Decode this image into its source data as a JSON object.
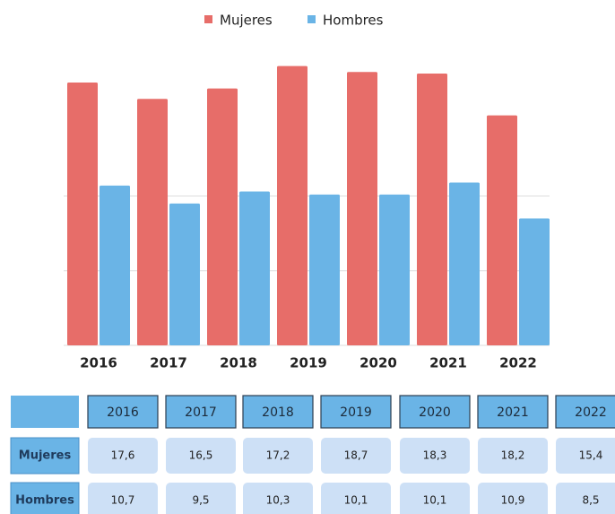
{
  "chart_data": {
    "type": "bar",
    "categories": [
      "2016",
      "2017",
      "2018",
      "2019",
      "2020",
      "2021",
      "2022"
    ],
    "series": [
      {
        "name": "Mujeres",
        "color": "#e76d69",
        "values": [
          17.6,
          16.5,
          17.2,
          18.7,
          18.3,
          18.2,
          15.4
        ],
        "value_labels": [
          "17,6",
          "16,5",
          "17,2",
          "18,7",
          "18,3",
          "18,2",
          "15,4"
        ]
      },
      {
        "name": "Hombres",
        "color": "#6ab4e6",
        "values": [
          10.7,
          9.5,
          10.3,
          10.1,
          10.1,
          10.9,
          8.5
        ],
        "value_labels": [
          "10,7",
          "9,5",
          "10,3",
          "10,1",
          "10,1",
          "10,9",
          "8,5"
        ]
      }
    ],
    "ylim": [
      0,
      20
    ],
    "yticks": [
      0,
      5,
      10
    ],
    "grid": true,
    "legend": "top"
  }
}
